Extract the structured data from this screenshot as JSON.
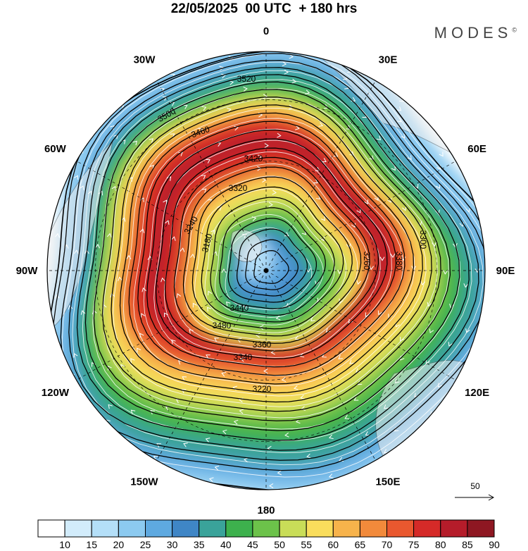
{
  "title": "22/05/2025  00 UTC  + 180 hrs",
  "brand": "MODES",
  "brand_mark": "©",
  "longitude_labels": [
    {
      "text": "0",
      "deg": 0
    },
    {
      "text": "30E",
      "deg": 30
    },
    {
      "text": "60E",
      "deg": 60
    },
    {
      "text": "90E",
      "deg": 90
    },
    {
      "text": "120E",
      "deg": 120
    },
    {
      "text": "150E",
      "deg": 150
    },
    {
      "text": "180",
      "deg": 180
    },
    {
      "text": "150W",
      "deg": 210
    },
    {
      "text": "120W",
      "deg": 240
    },
    {
      "text": "90W",
      "deg": 270
    },
    {
      "text": "60W",
      "deg": 300
    },
    {
      "text": "30W",
      "deg": 330
    }
  ],
  "contour_labels": [
    "3520",
    "3500",
    "3460",
    "3420",
    "3320",
    "3240",
    "3180",
    "3260",
    "3380",
    "3440",
    "3480",
    "3360",
    "3340",
    "3220",
    "3300"
  ],
  "wind_reference": "50",
  "colorbar": {
    "levels": [
      "10",
      "15",
      "20",
      "25",
      "30",
      "35",
      "40",
      "45",
      "50",
      "55",
      "60",
      "65",
      "70",
      "75",
      "80",
      "85",
      "90"
    ],
    "colors": [
      "#ffffff",
      "#d2ecfb",
      "#b4dff8",
      "#8ccaf0",
      "#5ea9e0",
      "#3f86c6",
      "#3aa39a",
      "#3db14d",
      "#6cc24a",
      "#c9dd58",
      "#f9dd5c",
      "#f7b34b",
      "#f28a3b",
      "#e9582f",
      "#d52a28",
      "#b51c2a",
      "#8e1722"
    ]
  },
  "colors": {
    "land": "#eeeeee",
    "coast": "#555555",
    "contour": "#000000",
    "streamline": "#ffffff",
    "pole_marker": "#000000"
  }
}
